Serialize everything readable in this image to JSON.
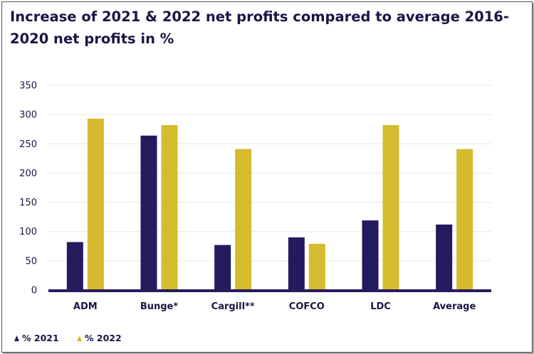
{
  "chart_data": {
    "type": "bar",
    "title": "Increase of 2021 & 2022 net profits compared to average 2016-2020 net profits in %",
    "xlabel": "",
    "ylabel": "",
    "categories": [
      "ADM",
      "Bunge*",
      "Cargill**",
      "COFCO",
      "LDC",
      "Average"
    ],
    "series": [
      {
        "name": "% 2021",
        "color": "#261a5e",
        "values": [
          82,
          264,
          77,
          90,
          119,
          112
        ]
      },
      {
        "name": "% 2022",
        "color": "#d4bc2e",
        "values": [
          293,
          282,
          241,
          79,
          282,
          241
        ]
      }
    ],
    "ylim": [
      0,
      350
    ],
    "yticks": [
      0,
      50,
      100,
      150,
      200,
      250,
      300,
      350
    ],
    "grid": true,
    "legend": "bottom-left",
    "axis_color": "#261a5e",
    "grid_color": "#e6e6e6"
  }
}
